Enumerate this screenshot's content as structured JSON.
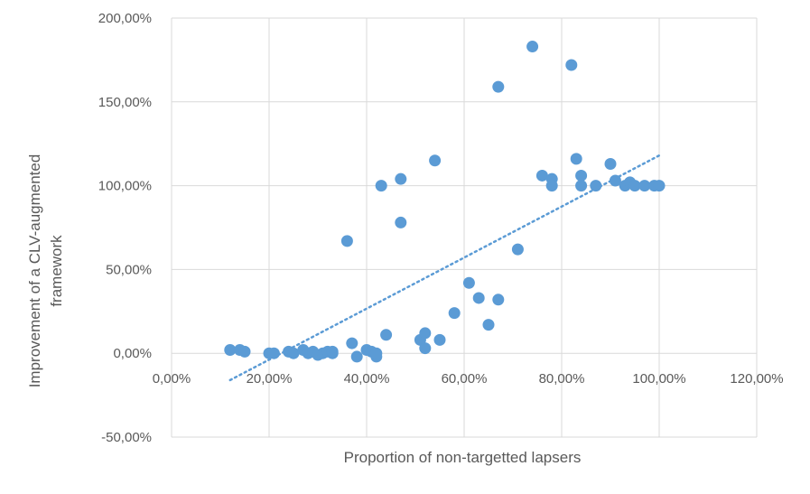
{
  "chart_data": {
    "type": "scatter",
    "title": "",
    "xlabel": "Proportion of non-targetted lapsers",
    "ylabel_lines": [
      "Improvement of a CLV-augmented",
      "framework"
    ],
    "xlim": [
      0,
      1.2
    ],
    "ylim": [
      -0.5,
      2.0
    ],
    "x_ticks": [
      0,
      0.2,
      0.4,
      0.6,
      0.8,
      1.0,
      1.2
    ],
    "x_tick_labels": [
      "0,00%",
      "20,00%",
      "40,00%",
      "60,00%",
      "80,00%",
      "100,00%",
      "120,00%"
    ],
    "y_ticks": [
      -0.5,
      0,
      0.5,
      1.0,
      1.5,
      2.0
    ],
    "y_tick_labels": [
      "-50,00%",
      "0,00%",
      "50,00%",
      "100,00%",
      "150,00%",
      "200,00%"
    ],
    "grid": "vertical-and-horizontal",
    "legend": "none",
    "marker_color": "#5b9bd5",
    "trendline": {
      "type": "linear-dotted",
      "color": "#5b9bd5",
      "x": [
        0.12,
        1.0
      ],
      "y": [
        -0.16,
        1.18
      ]
    },
    "points": [
      [
        0.12,
        0.02
      ],
      [
        0.14,
        0.02
      ],
      [
        0.15,
        0.01
      ],
      [
        0.2,
        0.0
      ],
      [
        0.21,
        0.0
      ],
      [
        0.24,
        0.01
      ],
      [
        0.25,
        0.0
      ],
      [
        0.27,
        0.02
      ],
      [
        0.28,
        0.0
      ],
      [
        0.29,
        0.01
      ],
      [
        0.3,
        -0.01
      ],
      [
        0.31,
        0.0
      ],
      [
        0.32,
        0.01
      ],
      [
        0.33,
        0.0
      ],
      [
        0.33,
        0.01
      ],
      [
        0.36,
        0.67
      ],
      [
        0.37,
        0.06
      ],
      [
        0.38,
        -0.02
      ],
      [
        0.4,
        0.02
      ],
      [
        0.41,
        0.01
      ],
      [
        0.42,
        -0.02
      ],
      [
        0.42,
        0.0
      ],
      [
        0.43,
        1.0
      ],
      [
        0.44,
        0.11
      ],
      [
        0.47,
        1.04
      ],
      [
        0.47,
        0.78
      ],
      [
        0.51,
        0.08
      ],
      [
        0.52,
        0.12
      ],
      [
        0.52,
        0.03
      ],
      [
        0.54,
        1.15
      ],
      [
        0.55,
        0.08
      ],
      [
        0.58,
        0.24
      ],
      [
        0.61,
        0.42
      ],
      [
        0.63,
        0.33
      ],
      [
        0.65,
        0.17
      ],
      [
        0.67,
        1.59
      ],
      [
        0.67,
        0.32
      ],
      [
        0.71,
        0.62
      ],
      [
        0.74,
        1.83
      ],
      [
        0.76,
        1.06
      ],
      [
        0.78,
        1.04
      ],
      [
        0.78,
        1.0
      ],
      [
        0.82,
        1.72
      ],
      [
        0.83,
        1.16
      ],
      [
        0.84,
        1.06
      ],
      [
        0.84,
        1.0
      ],
      [
        0.87,
        1.0
      ],
      [
        0.9,
        1.13
      ],
      [
        0.91,
        1.03
      ],
      [
        0.93,
        1.0
      ],
      [
        0.94,
        1.02
      ],
      [
        0.95,
        1.0
      ],
      [
        0.97,
        1.0
      ],
      [
        0.99,
        1.0
      ],
      [
        1.0,
        1.0
      ]
    ]
  }
}
